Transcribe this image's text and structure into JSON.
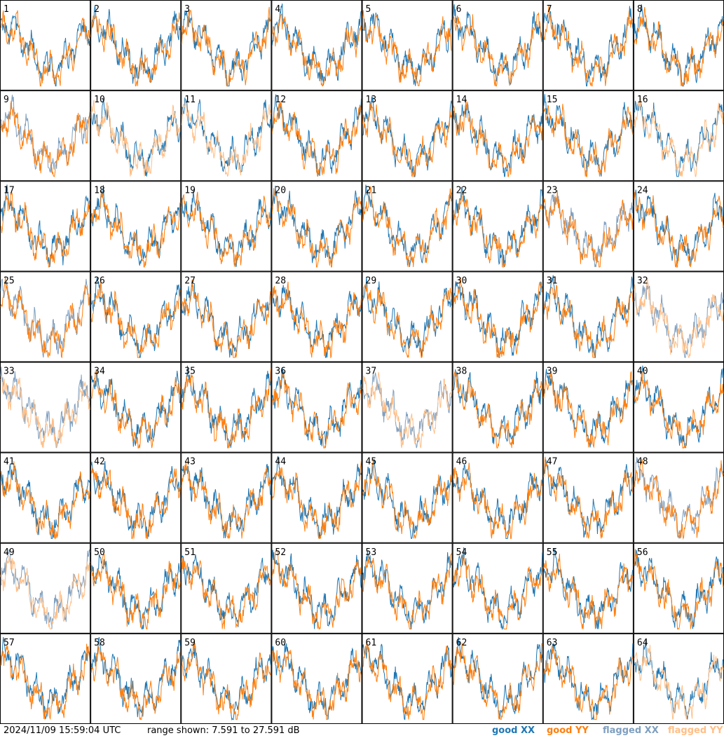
{
  "chart_data": {
    "type": "line",
    "timestamp": "2024/11/09 15:59:04 UTC",
    "range_text": "range shown: 7.591 to 27.591 dB",
    "ylim": [
      7.591,
      27.591
    ],
    "legend": [
      {
        "label": "good XX",
        "color": "#1f77b4"
      },
      {
        "label": "good YY",
        "color": "#ff7f0e"
      },
      {
        "label": "flagged XX",
        "color": "#7f9fbf"
      },
      {
        "label": "flagged YY",
        "color": "#ffbf87"
      }
    ],
    "legend_position": "bottom-right",
    "grid": {
      "rows": 8,
      "cols": 8
    },
    "panels": [
      {
        "id": "1",
        "xx": "good",
        "yy": "good"
      },
      {
        "id": "2",
        "xx": "good",
        "yy": "good"
      },
      {
        "id": "3",
        "xx": "good",
        "yy": "good"
      },
      {
        "id": "4",
        "xx": "good",
        "yy": "good"
      },
      {
        "id": "5",
        "xx": "good",
        "yy": "good"
      },
      {
        "id": "6",
        "xx": "good",
        "yy": "good"
      },
      {
        "id": "7",
        "xx": "good",
        "yy": "good"
      },
      {
        "id": "8",
        "xx": "good",
        "yy": "good"
      },
      {
        "id": "9",
        "xx": "flagged",
        "yy": "good"
      },
      {
        "id": "10",
        "xx": "good",
        "yy": "flagged"
      },
      {
        "id": "11",
        "xx": "good",
        "yy": "flagged"
      },
      {
        "id": "12",
        "xx": "good",
        "yy": "good"
      },
      {
        "id": "13",
        "xx": "good",
        "yy": "good"
      },
      {
        "id": "14",
        "xx": "good",
        "yy": "good"
      },
      {
        "id": "15",
        "xx": "good",
        "yy": "good"
      },
      {
        "id": "16",
        "xx": "good",
        "yy": "flagged"
      },
      {
        "id": "17",
        "xx": "good",
        "yy": "good"
      },
      {
        "id": "18",
        "xx": "good",
        "yy": "good"
      },
      {
        "id": "19",
        "xx": "good",
        "yy": "good"
      },
      {
        "id": "20",
        "xx": "good",
        "yy": "good"
      },
      {
        "id": "21",
        "xx": "good",
        "yy": "good"
      },
      {
        "id": "22",
        "xx": "good",
        "yy": "good"
      },
      {
        "id": "23",
        "xx": "flagged",
        "yy": "good"
      },
      {
        "id": "24",
        "xx": "good",
        "yy": "good"
      },
      {
        "id": "25",
        "xx": "flagged",
        "yy": "good"
      },
      {
        "id": "26",
        "xx": "good",
        "yy": "good"
      },
      {
        "id": "27",
        "xx": "good",
        "yy": "good"
      },
      {
        "id": "28",
        "xx": "good",
        "yy": "good"
      },
      {
        "id": "29",
        "xx": "good",
        "yy": "good"
      },
      {
        "id": "30",
        "xx": "good",
        "yy": "good"
      },
      {
        "id": "31",
        "xx": "good",
        "yy": "good"
      },
      {
        "id": "32",
        "xx": "flagged",
        "yy": "flagged"
      },
      {
        "id": "33",
        "xx": "flagged",
        "yy": "flagged"
      },
      {
        "id": "34",
        "xx": "good",
        "yy": "good"
      },
      {
        "id": "35",
        "xx": "good",
        "yy": "good"
      },
      {
        "id": "36",
        "xx": "good",
        "yy": "good"
      },
      {
        "id": "37",
        "xx": "flagged",
        "yy": "flagged"
      },
      {
        "id": "38",
        "xx": "good",
        "yy": "good"
      },
      {
        "id": "39",
        "xx": "good",
        "yy": "good"
      },
      {
        "id": "40",
        "xx": "good",
        "yy": "good"
      },
      {
        "id": "41",
        "xx": "good",
        "yy": "good"
      },
      {
        "id": "42",
        "xx": "good",
        "yy": "good"
      },
      {
        "id": "43",
        "xx": "good",
        "yy": "good"
      },
      {
        "id": "44",
        "xx": "good",
        "yy": "good"
      },
      {
        "id": "45",
        "xx": "good",
        "yy": "good"
      },
      {
        "id": "46",
        "xx": "good",
        "yy": "good"
      },
      {
        "id": "47",
        "xx": "good",
        "yy": "good"
      },
      {
        "id": "48",
        "xx": "flagged",
        "yy": "good"
      },
      {
        "id": "49",
        "xx": "flagged",
        "yy": "flagged"
      },
      {
        "id": "50",
        "xx": "good",
        "yy": "good"
      },
      {
        "id": "51",
        "xx": "good",
        "yy": "good"
      },
      {
        "id": "52",
        "xx": "good",
        "yy": "good"
      },
      {
        "id": "53",
        "xx": "good",
        "yy": "good"
      },
      {
        "id": "54",
        "xx": "good",
        "yy": "good"
      },
      {
        "id": "55",
        "xx": "good",
        "yy": "good"
      },
      {
        "id": "56",
        "xx": "good",
        "yy": "good"
      },
      {
        "id": "57",
        "xx": "good",
        "yy": "good"
      },
      {
        "id": "58",
        "xx": "good",
        "yy": "good"
      },
      {
        "id": "59",
        "xx": "good",
        "yy": "good"
      },
      {
        "id": "60",
        "xx": "good",
        "yy": "good"
      },
      {
        "id": "61",
        "xx": "good",
        "yy": "good"
      },
      {
        "id": "62",
        "xx": "good",
        "yy": "good"
      },
      {
        "id": "63",
        "xx": "good",
        "yy": "good"
      },
      {
        "id": "64",
        "xx": "good",
        "yy": "flagged"
      }
    ]
  }
}
